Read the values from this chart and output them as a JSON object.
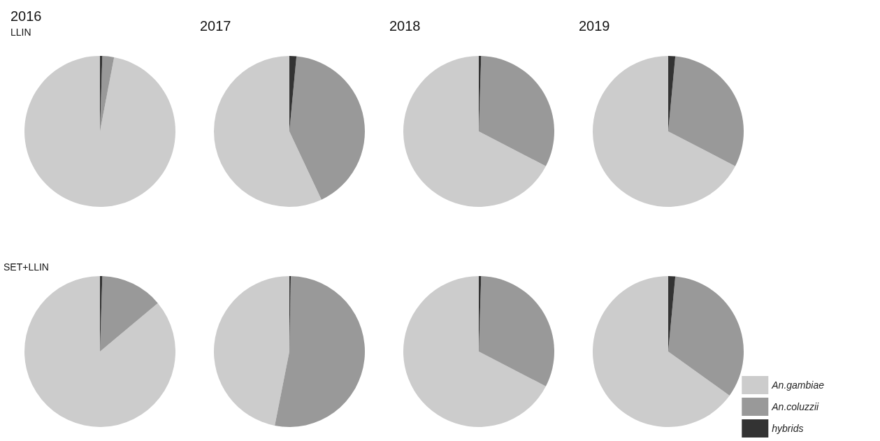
{
  "chart_data": [
    {
      "type": "pie",
      "title": "2016",
      "subtitle": "LLIN",
      "categories": [
        null,
        null,
        null
      ],
      "values": [
        97,
        2.5,
        0.5
      ],
      "colors": [
        "#cccccc",
        "#999999",
        "#333333"
      ],
      "legend": false
    },
    {
      "type": "pie",
      "title": "2017",
      "categories": [
        null,
        null,
        null
      ],
      "values": [
        57,
        41.5,
        1.5
      ],
      "colors": [
        "#cccccc",
        "#999999",
        "#333333"
      ],
      "legend": false
    },
    {
      "type": "pie",
      "title": "2018",
      "categories": [
        null,
        null,
        null
      ],
      "values": [
        67.4,
        32.1,
        0.5
      ],
      "colors": [
        "#cccccc",
        "#999999",
        "#333333"
      ],
      "legend": false
    },
    {
      "type": "pie",
      "title": "2019",
      "categories": [
        null,
        null,
        null
      ],
      "values": [
        67.4,
        31.1,
        1.5
      ],
      "colors": [
        "#cccccc",
        "#999999",
        "#333333"
      ],
      "legend": false
    },
    {
      "type": "pie",
      "title": "SET+LLIN",
      "categories": [
        null,
        null,
        null
      ],
      "values": [
        86.1,
        13.4,
        0.5
      ],
      "colors": [
        "#cccccc",
        "#999999",
        "#333333"
      ],
      "legend": false
    },
    {
      "type": "pie",
      "categories": [
        null,
        null,
        null
      ],
      "values": [
        46.9,
        52.8,
        0.3
      ],
      "colors": [
        "#cccccc",
        "#999999",
        "#333333"
      ],
      "legend": false
    },
    {
      "type": "pie",
      "categories": [
        null,
        null,
        null
      ],
      "values": [
        67.4,
        32.1,
        0.5
      ],
      "colors": [
        "#cccccc",
        "#999999",
        "#333333"
      ],
      "legend": false
    },
    {
      "type": "pie",
      "categories": [
        "An.gambiae",
        "An.coluzzii",
        "hybrids"
      ],
      "values": [
        65.1,
        33.4,
        1.5
      ],
      "colors": [
        "#cccccc",
        "#999999",
        "#333333"
      ],
      "legend": "bottom right"
    }
  ]
}
